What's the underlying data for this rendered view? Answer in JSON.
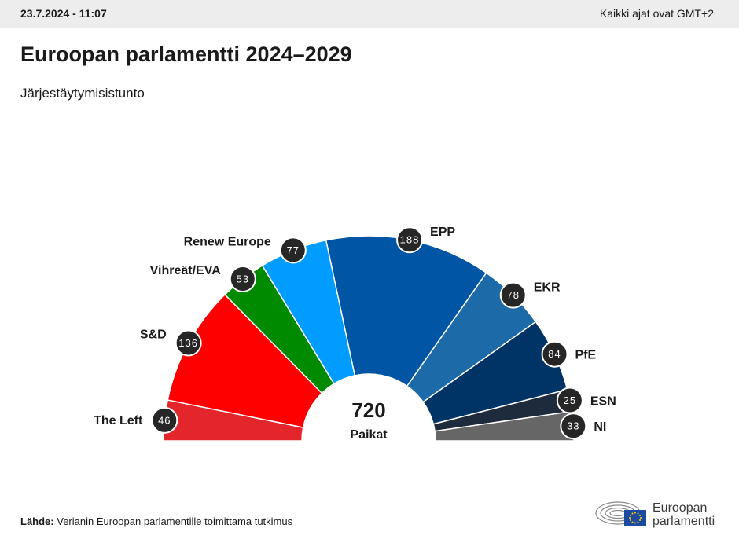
{
  "header": {
    "timestamp": "23.7.2024 - 11:07",
    "timezone": "Kaikki ajat ovat GMT+2"
  },
  "title": "Euroopan parlamentti 2024–2029",
  "subtitle": "Järjestäytymisistunto",
  "source": {
    "label": "Lähde:",
    "text": "Verianin Euroopan parlamentille toimittama tutkimus"
  },
  "logo": {
    "line1": "Euroopan",
    "line2": "parlamentti"
  },
  "chart_data": {
    "type": "pie",
    "shape": "half-donut",
    "total": 720,
    "total_label": "Paikat",
    "groups": [
      {
        "name": "The Left",
        "seats": 46,
        "color": "#e3262c"
      },
      {
        "name": "S&D",
        "seats": 136,
        "color": "#ff0000"
      },
      {
        "name": "Vihreät/EVA",
        "seats": 53,
        "color": "#008a00"
      },
      {
        "name": "Renew Europe",
        "seats": 77,
        "color": "#009cff"
      },
      {
        "name": "EPP",
        "seats": 188,
        "color": "#0055a4"
      },
      {
        "name": "EKR",
        "seats": 78,
        "color": "#1c6aa8"
      },
      {
        "name": "PfE",
        "seats": 84,
        "color": "#003366"
      },
      {
        "name": "ESN",
        "seats": 25,
        "color": "#1e2b3c"
      },
      {
        "name": "NI",
        "seats": 33,
        "color": "#666666"
      }
    ]
  }
}
